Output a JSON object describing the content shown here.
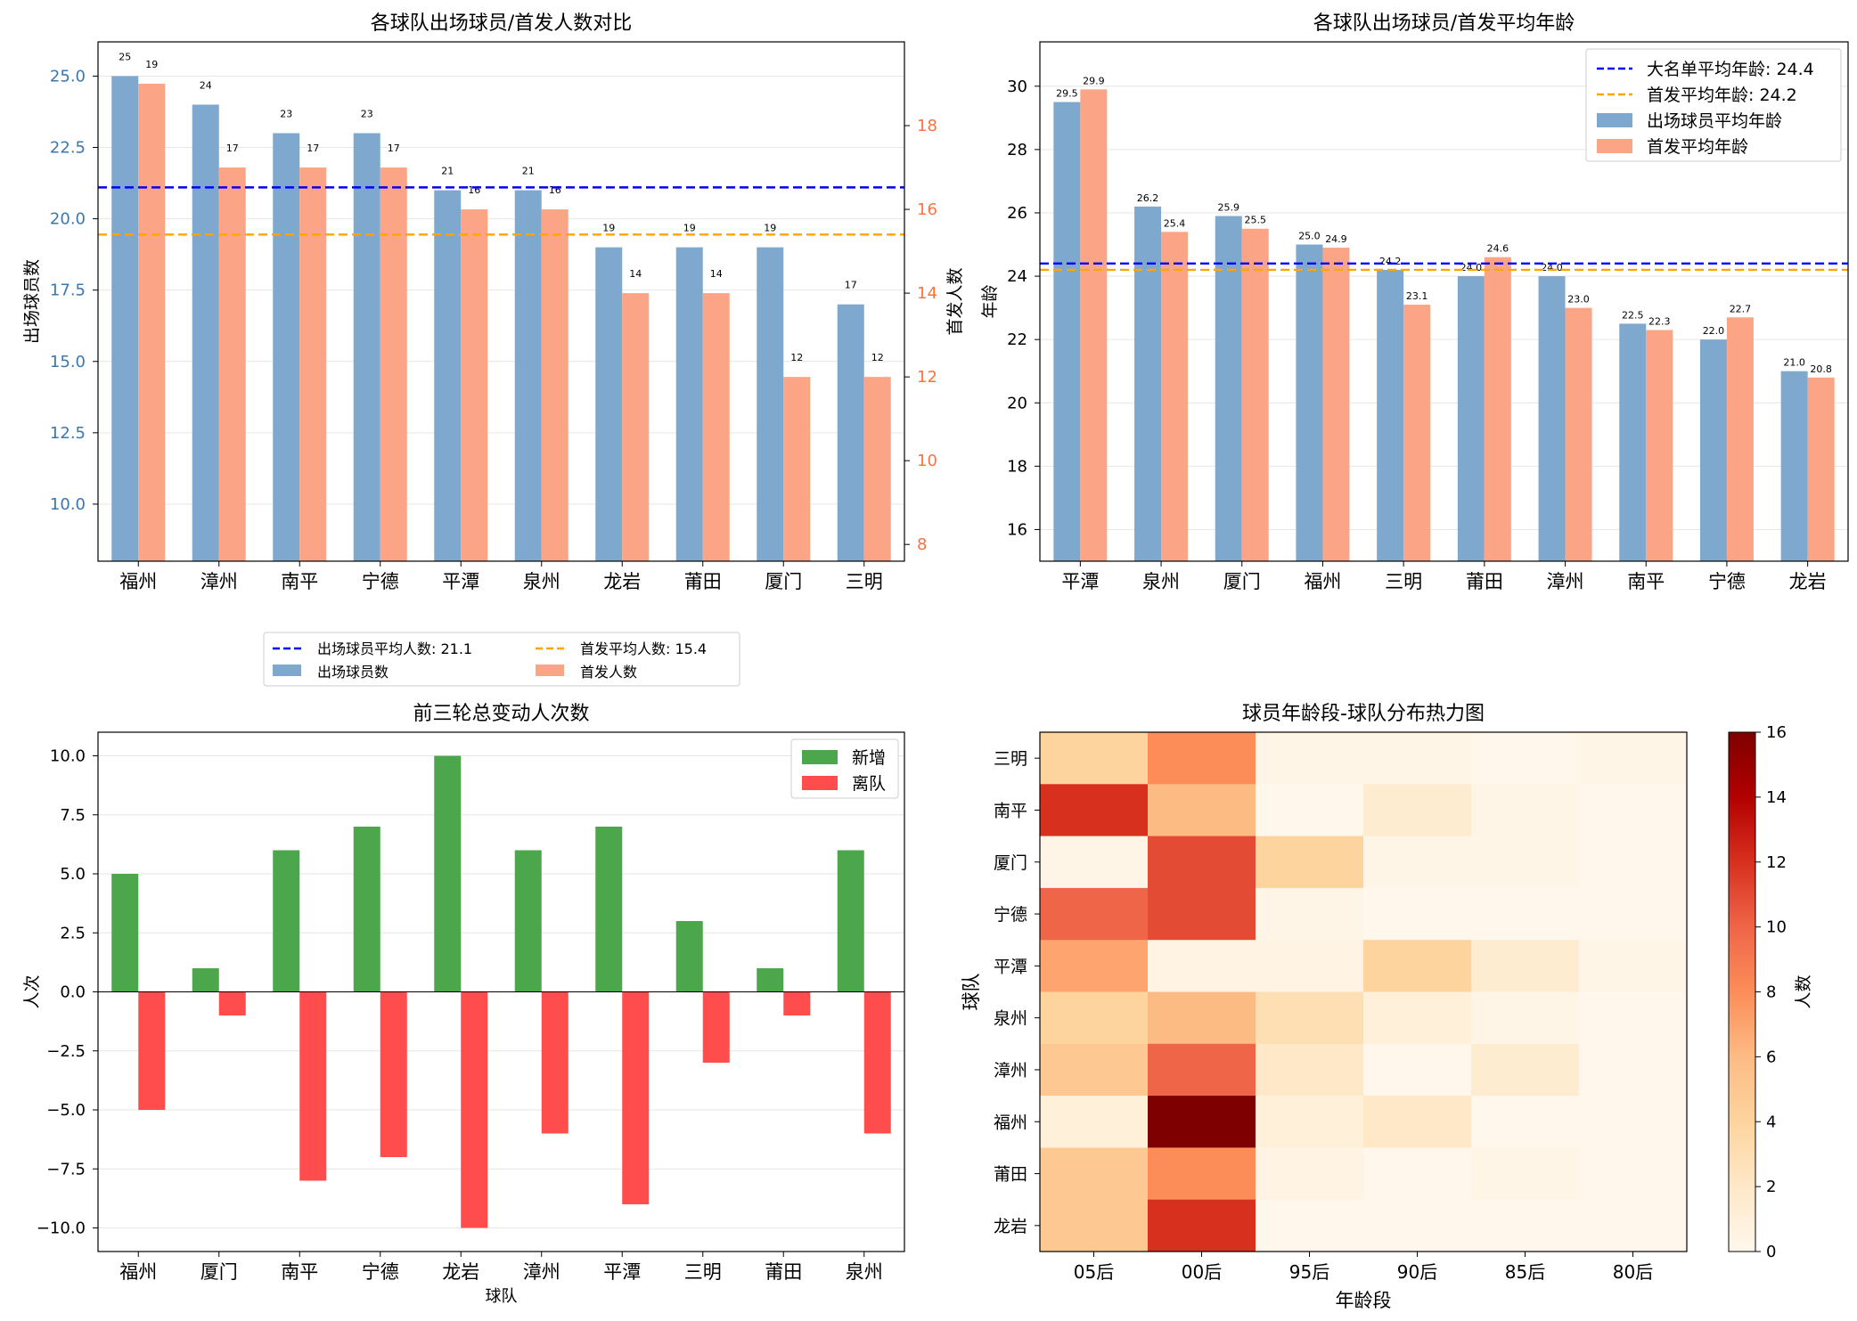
{
  "chart_data": [
    {
      "type": "bar",
      "title": "各球队出场球员/首发人数对比",
      "xlabel": "",
      "ylabel": "出场球员数",
      "ylabel_right": "首发人数",
      "categories": [
        "福州",
        "漳州",
        "南平",
        "宁德",
        "平潭",
        "泉州",
        "龙岩",
        "莆田",
        "厦门",
        "三明"
      ],
      "series": [
        {
          "name": "出场球员数",
          "axis": "left",
          "color": "#7fa8cf",
          "values": [
            25,
            24,
            23,
            23,
            21,
            21,
            19,
            19,
            19,
            17
          ]
        },
        {
          "name": "首发人数",
          "axis": "right",
          "color": "#fca586",
          "values": [
            19,
            17,
            17,
            17,
            16,
            16,
            14,
            14,
            12,
            12
          ]
        }
      ],
      "reference_lines": [
        {
          "name": "出场球员平均人数: 21.1",
          "value": 21.1,
          "axis": "left",
          "color": "#0000ff"
        },
        {
          "name": "首发平均人数: 15.4",
          "value": 15.4,
          "axis": "right",
          "color": "#ffa500"
        }
      ],
      "ylim": [
        8.0,
        26.2
      ],
      "yticks": [
        "10.0",
        "12.5",
        "15.0",
        "17.5",
        "20.0",
        "22.5",
        "25.0"
      ],
      "ylim_right": [
        7.6,
        20.0
      ],
      "yticks_right": [
        "8",
        "10",
        "12",
        "14",
        "16",
        "18"
      ],
      "left_axis_color": "#3a78b0",
      "right_axis_color": "#ff7040",
      "grid": "y",
      "legend_position": "below"
    },
    {
      "type": "bar",
      "title": "各球队出场球员/首发平均年龄",
      "xlabel": "",
      "ylabel": "年龄",
      "categories": [
        "平潭",
        "泉州",
        "厦门",
        "福州",
        "三明",
        "莆田",
        "漳州",
        "南平",
        "宁德",
        "龙岩"
      ],
      "series": [
        {
          "name": "出场球员平均年龄",
          "color": "#7fa8cf",
          "values": [
            29.5,
            26.2,
            25.9,
            25.0,
            24.2,
            24.0,
            24.0,
            22.5,
            22.0,
            21.0
          ]
        },
        {
          "name": "首发平均年龄",
          "color": "#fca586",
          "values": [
            29.9,
            25.4,
            25.5,
            24.9,
            23.1,
            24.6,
            23.0,
            22.3,
            22.7,
            20.8
          ]
        }
      ],
      "value_labels_a": [
        "29.5",
        "26.2",
        "25.9",
        "25.0",
        "24.2",
        "24.0",
        "24.0",
        "22.5",
        "22.0",
        "21.0"
      ],
      "value_labels_b": [
        "29.9",
        "25.4",
        "25.5",
        "24.9",
        "23.1",
        "24.6",
        "23.0",
        "22.3",
        "22.7",
        "20.8"
      ],
      "reference_lines": [
        {
          "name": "大名单平均年龄: 24.4",
          "value": 24.4,
          "color": "#0000ff"
        },
        {
          "name": "首发平均年龄: 24.2",
          "value": 24.2,
          "color": "#ffa500"
        }
      ],
      "ylim": [
        15.0,
        31.4
      ],
      "yticks": [
        "16",
        "18",
        "20",
        "22",
        "24",
        "26",
        "28",
        "30"
      ],
      "grid": "y",
      "legend_position": "top-right"
    },
    {
      "type": "bar",
      "title": "前三轮总变动人次数",
      "xlabel": "球队",
      "ylabel": "人次",
      "categories": [
        "福州",
        "厦门",
        "南平",
        "宁德",
        "龙岩",
        "漳州",
        "平潭",
        "三明",
        "莆田",
        "泉州"
      ],
      "series": [
        {
          "name": "新增",
          "color": "#4ca64c",
          "values": [
            5,
            1,
            6,
            7,
            10,
            6,
            7,
            3,
            1,
            6
          ]
        },
        {
          "name": "离队",
          "color": "#ff4d4d",
          "values": [
            -5,
            -1,
            -8,
            -7,
            -10,
            -6,
            -9,
            -3,
            -1,
            -6
          ]
        }
      ],
      "ylim": [
        -11.0,
        11.0
      ],
      "yticks": [
        "−10.0",
        "−7.5",
        "−5.0",
        "−2.5",
        "0.0",
        "2.5",
        "5.0",
        "7.5",
        "10.0"
      ],
      "grid": "y",
      "legend_position": "top-right"
    },
    {
      "type": "heatmap",
      "title": "球员年龄段-球队分布热力图",
      "xlabel": "年龄段",
      "ylabel": "球队",
      "colorbar_label": "人数",
      "x": [
        "05后",
        "00后",
        "95后",
        "90后",
        "85后",
        "80后"
      ],
      "y": [
        "三明",
        "南平",
        "厦门",
        "宁德",
        "平潭",
        "泉州",
        "漳州",
        "福州",
        "莆田",
        "龙岩"
      ],
      "values": [
        [
          4,
          8,
          0.3,
          0.3,
          0,
          0.3
        ],
        [
          12,
          6,
          0,
          1.5,
          0.3,
          0
        ],
        [
          0.3,
          11,
          4,
          0.3,
          0.3,
          0
        ],
        [
          10,
          11,
          0.3,
          0,
          0,
          0
        ],
        [
          7,
          0.5,
          0.5,
          4,
          1.5,
          0.3
        ],
        [
          4,
          6,
          3,
          1,
          0.3,
          0
        ],
        [
          5,
          10,
          2,
          0,
          1.5,
          0
        ],
        [
          1,
          16,
          1,
          2,
          0,
          0
        ],
        [
          5,
          8,
          0.5,
          0,
          0.3,
          0
        ],
        [
          5,
          12,
          0,
          0,
          0,
          0
        ]
      ],
      "vmin": 0,
      "vmax": 16,
      "colorbar_ticks": [
        "0",
        "2",
        "4",
        "6",
        "8",
        "10",
        "12",
        "14",
        "16"
      ],
      "colormap": "OrRd"
    }
  ]
}
